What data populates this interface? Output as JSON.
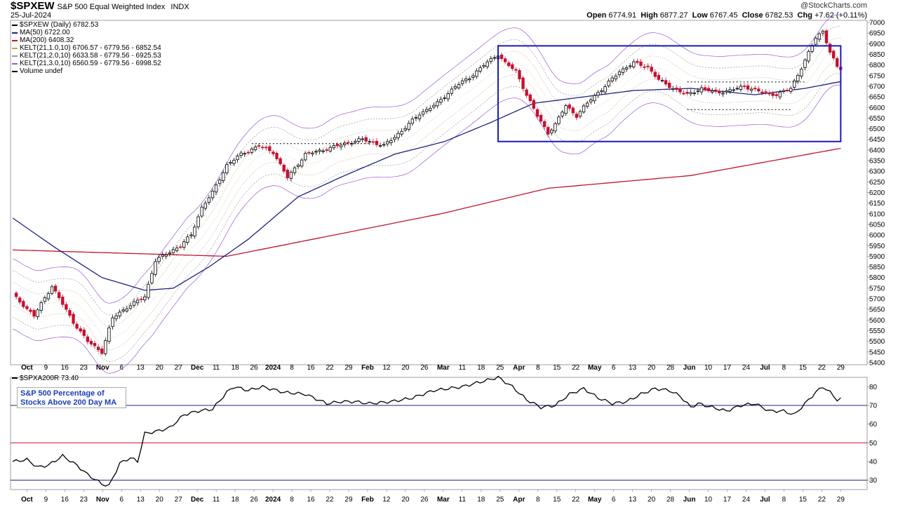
{
  "header": {
    "symbol": "$SPXEW",
    "name": "S&P 500 Equal Weighted Index",
    "exchange": "INDX",
    "date": "25-Jul-2024",
    "watermark": "@StockCharts.com",
    "ohlc": {
      "open_label": "Open",
      "open": "6774.91",
      "high_label": "High",
      "high": "6877.27",
      "low_label": "Low",
      "low": "6767.45",
      "close_label": "Close",
      "close": "6782.53",
      "chg_label": "Chg",
      "chg": "+7.62 (+0.11%)"
    }
  },
  "legend": [
    {
      "text": "$SPXEW (Daily) 6782.53",
      "color": "#000000"
    },
    {
      "text": "MA(50) 6722.00",
      "color": "#1c237e"
    },
    {
      "text": "MA(200) 6408.32",
      "color": "#c0152f"
    },
    {
      "text": "KELT(21,1.0,10) 6706.57 - 6779.56 - 6852.54",
      "color": "#c69c5d"
    },
    {
      "text": "KELT(21,2.0,10) 6633.58 - 6779.56 - 6925.53",
      "color": "#999999"
    },
    {
      "text": "KELT(21,3.0,10) 6560.59 - 6779.56 - 6998.52",
      "color": "#9b5bd1"
    },
    {
      "text": "Volume undef",
      "color": "#000000"
    }
  ],
  "indicator": {
    "legend": "$SPXA200R 73.40",
    "box_line1": "S&P 500 Percentage of",
    "box_line2": "Stocks Above 200 Day MA"
  },
  "colors": {
    "up": "#000000",
    "down": "#c8102e",
    "ma50": "#1c237e",
    "ma200": "#c0152f",
    "kelt1": "#c69c5d",
    "kelt2": "#999999",
    "kelt3": "#9b5bd1",
    "box": "#1a1ab4"
  },
  "chart_data": [
    {
      "type": "candlestick",
      "title": "$SPXEW S&P 500 Equal Weighted Index",
      "y_ticks": [
        5400,
        5450,
        5500,
        5550,
        5600,
        5650,
        5700,
        5750,
        5800,
        5850,
        5900,
        5950,
        6000,
        6050,
        6100,
        6150,
        6200,
        6250,
        6300,
        6350,
        6400,
        6450,
        6500,
        6550,
        6600,
        6650,
        6700,
        6750,
        6800,
        6850,
        6900,
        6950,
        7000
      ],
      "ylim": [
        5390,
        7010
      ],
      "x_tick_labels": [
        "Oct",
        "9",
        "16",
        "23",
        "Nov",
        "6",
        "13",
        "20",
        "27",
        "Dec",
        "11",
        "18",
        "26",
        "2024",
        "8",
        "16",
        "22",
        "29",
        "Feb",
        "12",
        "20",
        "26",
        "Mar",
        "11",
        "18",
        "25",
        "Apr",
        "8",
        "15",
        "22",
        "May",
        "6",
        "13",
        "20",
        "28",
        "Jun",
        "10",
        "17",
        "24",
        "Jul",
        "8",
        "15",
        "22",
        "29"
      ],
      "bold_ticks": [
        "Oct",
        "Nov",
        "Dec",
        "2024",
        "Feb",
        "Mar",
        "Apr",
        "May",
        "Jun",
        "Jul"
      ],
      "close_anchors": [
        [
          0,
          5720
        ],
        [
          6,
          5620
        ],
        [
          11,
          5760
        ],
        [
          17,
          5590
        ],
        [
          21,
          5500
        ],
        [
          25,
          5450
        ],
        [
          28,
          5610
        ],
        [
          32,
          5660
        ],
        [
          37,
          5710
        ],
        [
          40,
          5880
        ],
        [
          47,
          5950
        ],
        [
          50,
          6000
        ],
        [
          53,
          6130
        ],
        [
          56,
          6200
        ],
        [
          60,
          6330
        ],
        [
          64,
          6380
        ],
        [
          69,
          6420
        ],
        [
          73,
          6390
        ],
        [
          77,
          6270
        ],
        [
          82,
          6380
        ],
        [
          87,
          6400
        ],
        [
          93,
          6430
        ],
        [
          98,
          6450
        ],
        [
          104,
          6420
        ],
        [
          109,
          6490
        ],
        [
          114,
          6570
        ],
        [
          119,
          6620
        ],
        [
          124,
          6700
        ],
        [
          128,
          6740
        ],
        [
          132,
          6800
        ],
        [
          136,
          6850
        ],
        [
          138,
          6810
        ],
        [
          141,
          6770
        ],
        [
          144,
          6660
        ],
        [
          147,
          6560
        ],
        [
          150,
          6480
        ],
        [
          152,
          6520
        ],
        [
          155,
          6610
        ],
        [
          158,
          6560
        ],
        [
          162,
          6640
        ],
        [
          166,
          6700
        ],
        [
          170,
          6770
        ],
        [
          174,
          6810
        ],
        [
          178,
          6790
        ],
        [
          181,
          6730
        ],
        [
          185,
          6690
        ],
        [
          189,
          6660
        ],
        [
          193,
          6690
        ],
        [
          197,
          6670
        ],
        [
          201,
          6680
        ],
        [
          205,
          6700
        ],
        [
          210,
          6670
        ],
        [
          214,
          6660
        ],
        [
          218,
          6690
        ],
        [
          222,
          6820
        ],
        [
          225,
          6930
        ],
        [
          227,
          6960
        ],
        [
          229,
          6860
        ],
        [
          231,
          6790
        ],
        [
          232,
          6783
        ]
      ],
      "ma50_anchors": [
        [
          0,
          6080
        ],
        [
          12,
          5940
        ],
        [
          25,
          5800
        ],
        [
          37,
          5740
        ],
        [
          45,
          5750
        ],
        [
          55,
          5850
        ],
        [
          66,
          5980
        ],
        [
          80,
          6180
        ],
        [
          93,
          6280
        ],
        [
          107,
          6380
        ],
        [
          121,
          6440
        ],
        [
          134,
          6530
        ],
        [
          146,
          6620
        ],
        [
          160,
          6650
        ],
        [
          174,
          6680
        ],
        [
          190,
          6690
        ],
        [
          208,
          6660
        ],
        [
          222,
          6690
        ],
        [
          232,
          6722
        ]
      ],
      "ma200_anchors": [
        [
          0,
          5930
        ],
        [
          60,
          5900
        ],
        [
          120,
          6100
        ],
        [
          150,
          6220
        ],
        [
          190,
          6280
        ],
        [
          232,
          6408
        ]
      ],
      "kelt_width": 55,
      "annotations": {
        "rectangle": {
          "t0": 136,
          "t1": 232,
          "y_high": 6890,
          "y_low": 6440
        },
        "dotted_levels": [
          {
            "t0": 67,
            "t1": 100,
            "y": 6430
          },
          {
            "t0": 189,
            "t1": 222,
            "y": 6720
          },
          {
            "t0": 189,
            "t1": 218,
            "y": 6590
          }
        ]
      }
    },
    {
      "type": "line",
      "title": "$SPXA200R",
      "y_ticks": [
        30,
        40,
        50,
        60,
        70,
        80
      ],
      "ylim": [
        25,
        85
      ],
      "horizontal_lines": [
        {
          "y": 70,
          "color": "#1c237e"
        },
        {
          "y": 50,
          "color": "#c0152f"
        },
        {
          "y": 30,
          "color": "#1c237e"
        }
      ],
      "anchors": [
        [
          0,
          40
        ],
        [
          4,
          41
        ],
        [
          7,
          37
        ],
        [
          10,
          38
        ],
        [
          14,
          43
        ],
        [
          18,
          38
        ],
        [
          21,
          33
        ],
        [
          25,
          28
        ],
        [
          27,
          27
        ],
        [
          30,
          39
        ],
        [
          33,
          42
        ],
        [
          35,
          40
        ],
        [
          37,
          55
        ],
        [
          40,
          56
        ],
        [
          44,
          58
        ],
        [
          48,
          65
        ],
        [
          52,
          67
        ],
        [
          56,
          68
        ],
        [
          60,
          77
        ],
        [
          62,
          80
        ],
        [
          66,
          78
        ],
        [
          70,
          80
        ],
        [
          76,
          77
        ],
        [
          82,
          76
        ],
        [
          88,
          71
        ],
        [
          92,
          72
        ],
        [
          96,
          72
        ],
        [
          100,
          71
        ],
        [
          106,
          72
        ],
        [
          112,
          74
        ],
        [
          118,
          78
        ],
        [
          126,
          80
        ],
        [
          134,
          84
        ],
        [
          136,
          85
        ],
        [
          140,
          80
        ],
        [
          144,
          73
        ],
        [
          148,
          69
        ],
        [
          152,
          70
        ],
        [
          156,
          76
        ],
        [
          160,
          79
        ],
        [
          164,
          74
        ],
        [
          168,
          71
        ],
        [
          172,
          72
        ],
        [
          176,
          76
        ],
        [
          180,
          79
        ],
        [
          184,
          78
        ],
        [
          187,
          75
        ],
        [
          190,
          69
        ],
        [
          192,
          71
        ],
        [
          196,
          69
        ],
        [
          200,
          67
        ],
        [
          204,
          70
        ],
        [
          208,
          71
        ],
        [
          212,
          67
        ],
        [
          216,
          67
        ],
        [
          219,
          65
        ],
        [
          222,
          71
        ],
        [
          225,
          77
        ],
        [
          227,
          80
        ],
        [
          229,
          77
        ],
        [
          231,
          73
        ],
        [
          232,
          73.4
        ]
      ]
    }
  ]
}
